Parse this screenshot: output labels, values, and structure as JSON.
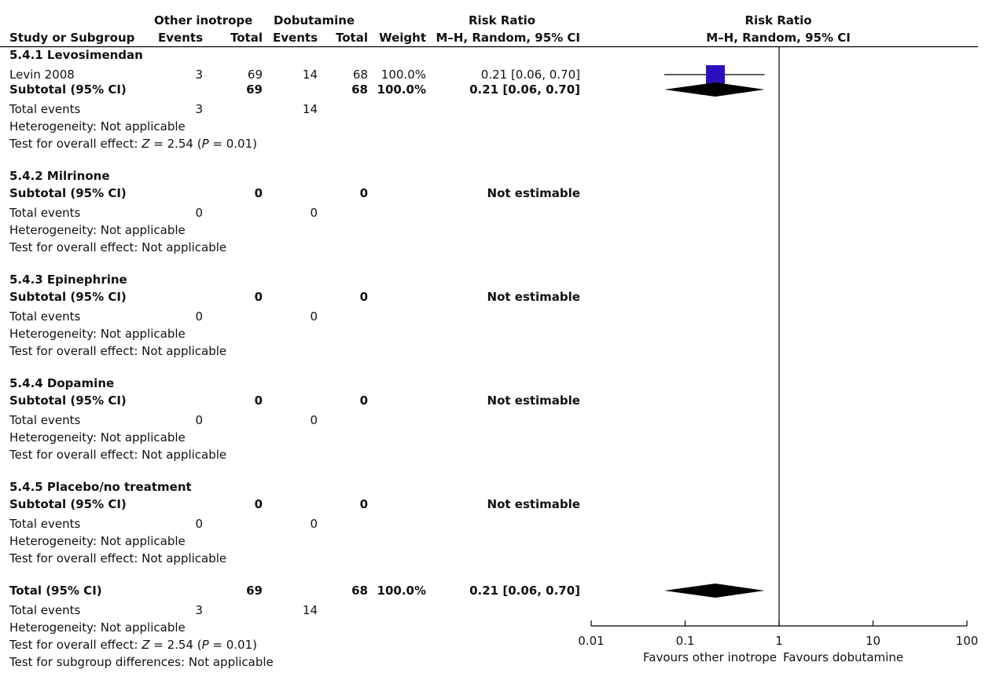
{
  "header": {
    "group1": "Other inotrope",
    "group2": "Dobutamine",
    "rr_title": "Risk Ratio",
    "rr_method": "M–H, Random, 95% CI",
    "plot_title": "Risk Ratio",
    "plot_method": "M–H, Random, 95% CI",
    "study_col": "Study or Subgroup",
    "events1": "Events",
    "total1": "Total",
    "events2": "Events",
    "total2": "Total",
    "weight": "Weight"
  },
  "subgroups": [
    {
      "title": "5.4.1 Levosimendan",
      "study": {
        "name": "Levin 2008",
        "e1": "3",
        "t1": "69",
        "e2": "14",
        "t2": "68",
        "weight": "100.0%",
        "ci": "0.21 [0.06, 0.70]"
      },
      "subtotal": {
        "label": "Subtotal (95% CI)",
        "t1": "69",
        "t2": "68",
        "weight": "100.0%",
        "ci": "0.21 [0.06, 0.70]"
      },
      "events": {
        "label": "Total events",
        "e1": "3",
        "e2": "14"
      },
      "heterogeneity": "Heterogeneity: Not applicable",
      "effect_prefix": "Test for overall effect: ",
      "effect_z": "Z",
      "effect_mid": " = 2.54 (",
      "effect_p": "P",
      "effect_end": " = 0.01)"
    },
    {
      "title": "5.4.2 Milrinone",
      "subtotal": {
        "label": "Subtotal (95% CI)",
        "t1": "0",
        "t2": "0",
        "ci": "Not estimable"
      },
      "events": {
        "label": "Total events",
        "e1": "0",
        "e2": "0"
      },
      "heterogeneity": "Heterogeneity: Not applicable",
      "effect": "Test for overall effect: Not applicable"
    },
    {
      "title": "5.4.3 Epinephrine",
      "subtotal": {
        "label": "Subtotal (95% CI)",
        "t1": "0",
        "t2": "0",
        "ci": "Not estimable"
      },
      "events": {
        "label": "Total events",
        "e1": "0",
        "e2": "0"
      },
      "heterogeneity": "Heterogeneity: Not applicable",
      "effect": "Test for overall effect: Not applicable"
    },
    {
      "title": "5.4.4 Dopamine",
      "subtotal": {
        "label": "Subtotal (95% CI)",
        "t1": "0",
        "t2": "0",
        "ci": "Not estimable"
      },
      "events": {
        "label": "Total events",
        "e1": "0",
        "e2": "0"
      },
      "heterogeneity": "Heterogeneity: Not applicable",
      "effect": "Test for overall effect: Not applicable"
    },
    {
      "title": "5.4.5 Placebo/no treatment",
      "subtotal": {
        "label": "Subtotal (95% CI)",
        "t1": "0",
        "t2": "0",
        "ci": "Not estimable"
      },
      "events": {
        "label": "Total events",
        "e1": "0",
        "e2": "0"
      },
      "heterogeneity": "Heterogeneity: Not applicable",
      "effect": "Test for overall effect: Not applicable"
    }
  ],
  "total": {
    "label": "Total (95% CI)",
    "t1": "69",
    "t2": "68",
    "weight": "100.0%",
    "ci": "0.21 [0.06, 0.70]",
    "events_label": "Total events",
    "e1": "3",
    "e2": "14",
    "heterogeneity": "Heterogeneity: Not applicable",
    "effect_prefix": "Test for overall effect: ",
    "effect_z": "Z",
    "effect_mid": " = 2.54 (",
    "effect_p": "P",
    "effect_end": " = 0.01)",
    "subgroup_diff": "Test for subgroup differences: Not applicable"
  },
  "axis": {
    "favours_left": "Favours other inotrope",
    "favours_right": "Favours dobutamine"
  },
  "chart_data": {
    "type": "forest",
    "scale": "log",
    "xlim": [
      0.01,
      100
    ],
    "ticks": [
      0.01,
      0.1,
      1,
      10,
      100
    ],
    "tick_labels": [
      "0.01",
      "0.1",
      "1",
      "10",
      "100"
    ],
    "reference_line": 1,
    "colors": {
      "study_marker": "#2a10bd",
      "diamond": "#000000"
    },
    "studies": [
      {
        "name": "Levin 2008",
        "rr": 0.21,
        "lo": 0.06,
        "hi": 0.7,
        "weight": 100.0
      }
    ],
    "subtotals": [
      {
        "name": "5.4.1 Levosimendan",
        "rr": 0.21,
        "lo": 0.06,
        "hi": 0.7
      }
    ],
    "overall": {
      "rr": 0.21,
      "lo": 0.06,
      "hi": 0.7
    }
  }
}
